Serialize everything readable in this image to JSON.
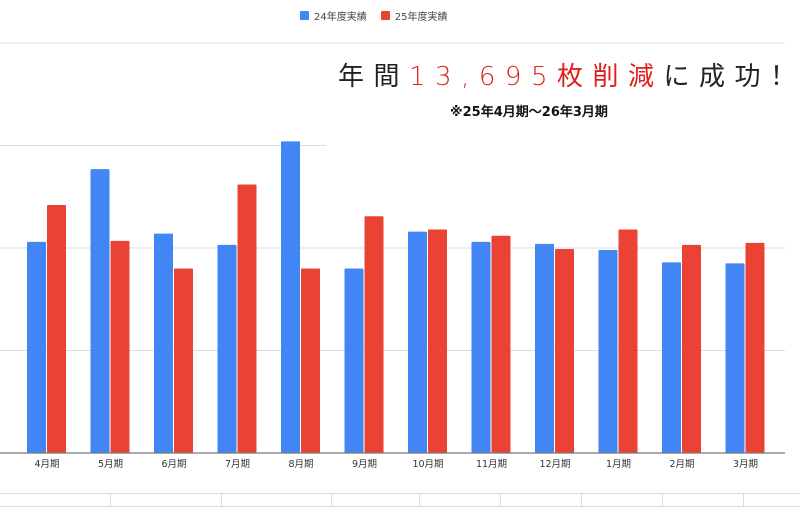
{
  "chart_data": {
    "type": "bar",
    "title": "",
    "xlabel": "",
    "ylabel": "",
    "ylim": [
      0,
      4
    ],
    "grid": true,
    "legend_position": "top",
    "categories": [
      "4月期",
      "5月期",
      "6月期",
      "7月期",
      "8月期",
      "9月期",
      "10月期",
      "11月期",
      "12月期",
      "1月期",
      "2月期",
      "3月期"
    ],
    "series": [
      {
        "name": "24年度実績",
        "color": "#4285f4",
        "values": [
          2.06,
          2.77,
          2.14,
          2.03,
          3.04,
          1.8,
          2.16,
          2.06,
          2.04,
          1.98,
          1.86,
          1.85
        ]
      },
      {
        "name": "25年度実績",
        "color": "#ea4335",
        "values": [
          2.42,
          2.07,
          1.8,
          2.62,
          1.8,
          2.31,
          2.18,
          2.12,
          1.99,
          2.18,
          2.03,
          2.05
        ]
      }
    ]
  },
  "annotation": {
    "prefix": "年間",
    "highlight": "13,695枚削減",
    "suffix": "に成功！",
    "highlight_color": "#e0201d",
    "period": "※25年4月期～26年3月期"
  }
}
